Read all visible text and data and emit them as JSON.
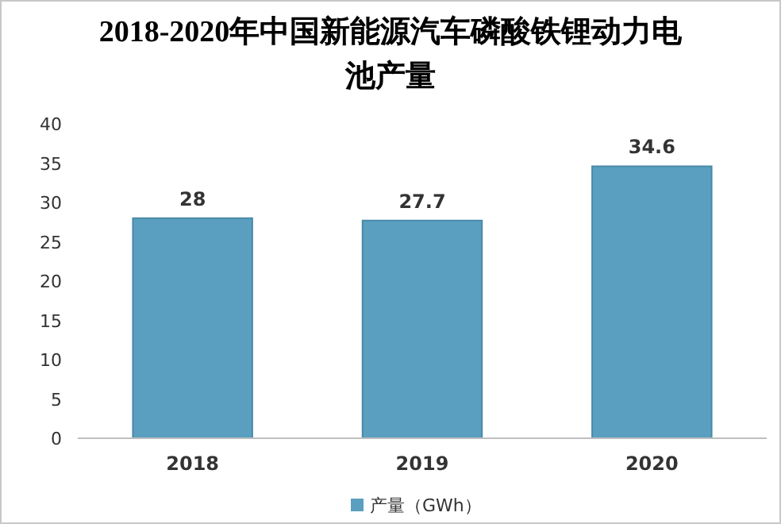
{
  "chart_data": {
    "type": "bar",
    "title": "2018-2020年中国新能源汽车磷酸铁锂动力电池产量",
    "categories": [
      "2018",
      "2019",
      "2020"
    ],
    "series": [
      {
        "name": "产量（GWh）",
        "color": "#5a9fc0",
        "values": [
          28,
          27.7,
          34.6
        ]
      }
    ],
    "ylim": [
      0,
      40
    ],
    "yticks": [
      0,
      5,
      10,
      15,
      20,
      25,
      30,
      35,
      40
    ],
    "data_labels": true,
    "legend": "bottom"
  }
}
